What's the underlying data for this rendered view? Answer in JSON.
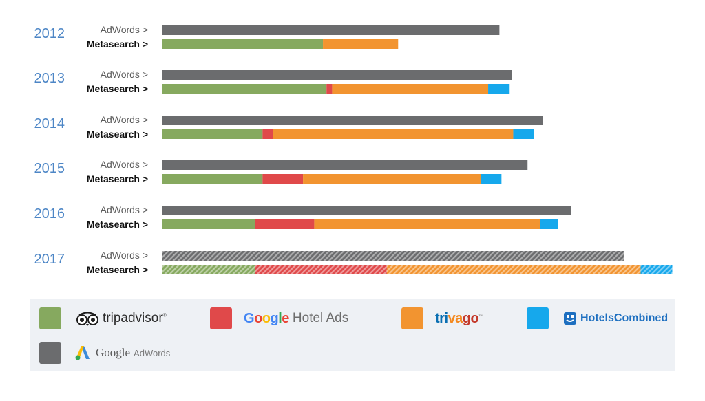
{
  "chart_data": {
    "type": "bar",
    "orientation": "horizontal",
    "stacked": true,
    "title": "",
    "xlabel": "",
    "ylabel": "",
    "grid": false,
    "legend_position": "bottom",
    "categories": [
      "2012",
      "2013",
      "2014",
      "2015",
      "2016",
      "2017"
    ],
    "row_labels": {
      "adwords": "AdWords >",
      "meta": "Metasearch >"
    },
    "xlim": [
      0,
      100
    ],
    "adwords": [
      66,
      68.5,
      74.5,
      71.5,
      80,
      90.3
    ],
    "metasearch": [
      {
        "name": "tripadvisor",
        "color": "#86a95f",
        "values": [
          31.5,
          32.2,
          19.7,
          19.7,
          18.2,
          18.2
        ]
      },
      {
        "name": "Google Hotel Ads",
        "color": "#e0494a",
        "values": [
          0,
          1.1,
          2.1,
          7.9,
          11.6,
          25.8
        ]
      },
      {
        "name": "trivago",
        "color": "#f29430",
        "values": [
          14.7,
          30.5,
          46.9,
          34.8,
          44.1,
          49.6
        ]
      },
      {
        "name": "HotelsCombined",
        "color": "#16a8ec",
        "values": [
          0,
          4.2,
          4,
          4,
          3.6,
          6.2
        ]
      }
    ],
    "adwords_color": "#6b6c6e",
    "hatched_category": "2017"
  },
  "legend": {
    "tripadvisor": {
      "text": "tripadvisor",
      "reg": "®",
      "swatch": "#86a95f",
      "icon": "owl-eyes-icon"
    },
    "google_hotel_ads": {
      "letters": [
        "G",
        "o",
        "o",
        "g",
        "l",
        "e"
      ],
      "letter_colors": [
        "#4285f4",
        "#ea4335",
        "#fbbc05",
        "#4285f4",
        "#34a853",
        "#ea4335"
      ],
      "rest": "Hotel Ads",
      "swatch": "#e0494a"
    },
    "trivago": {
      "letters": [
        "t",
        "r",
        "i",
        "v",
        "a",
        "g",
        "o"
      ],
      "letter_colors": [
        "#0a6fb2",
        "#0a6fb2",
        "#0a6fb2",
        "#f4891f",
        "#f4891f",
        "#c43a2b",
        "#c43a2b"
      ],
      "tm": "™",
      "swatch": "#f29430"
    },
    "hotelscombined": {
      "text": "HotelsCombined",
      "swatch": "#16a8ec",
      "icon": "hotelscombined-logo-icon"
    },
    "adwords": {
      "google": "Google",
      "rest": "AdWords",
      "swatch": "#6b6c6e",
      "icon": "adwords-logo-icon"
    }
  }
}
